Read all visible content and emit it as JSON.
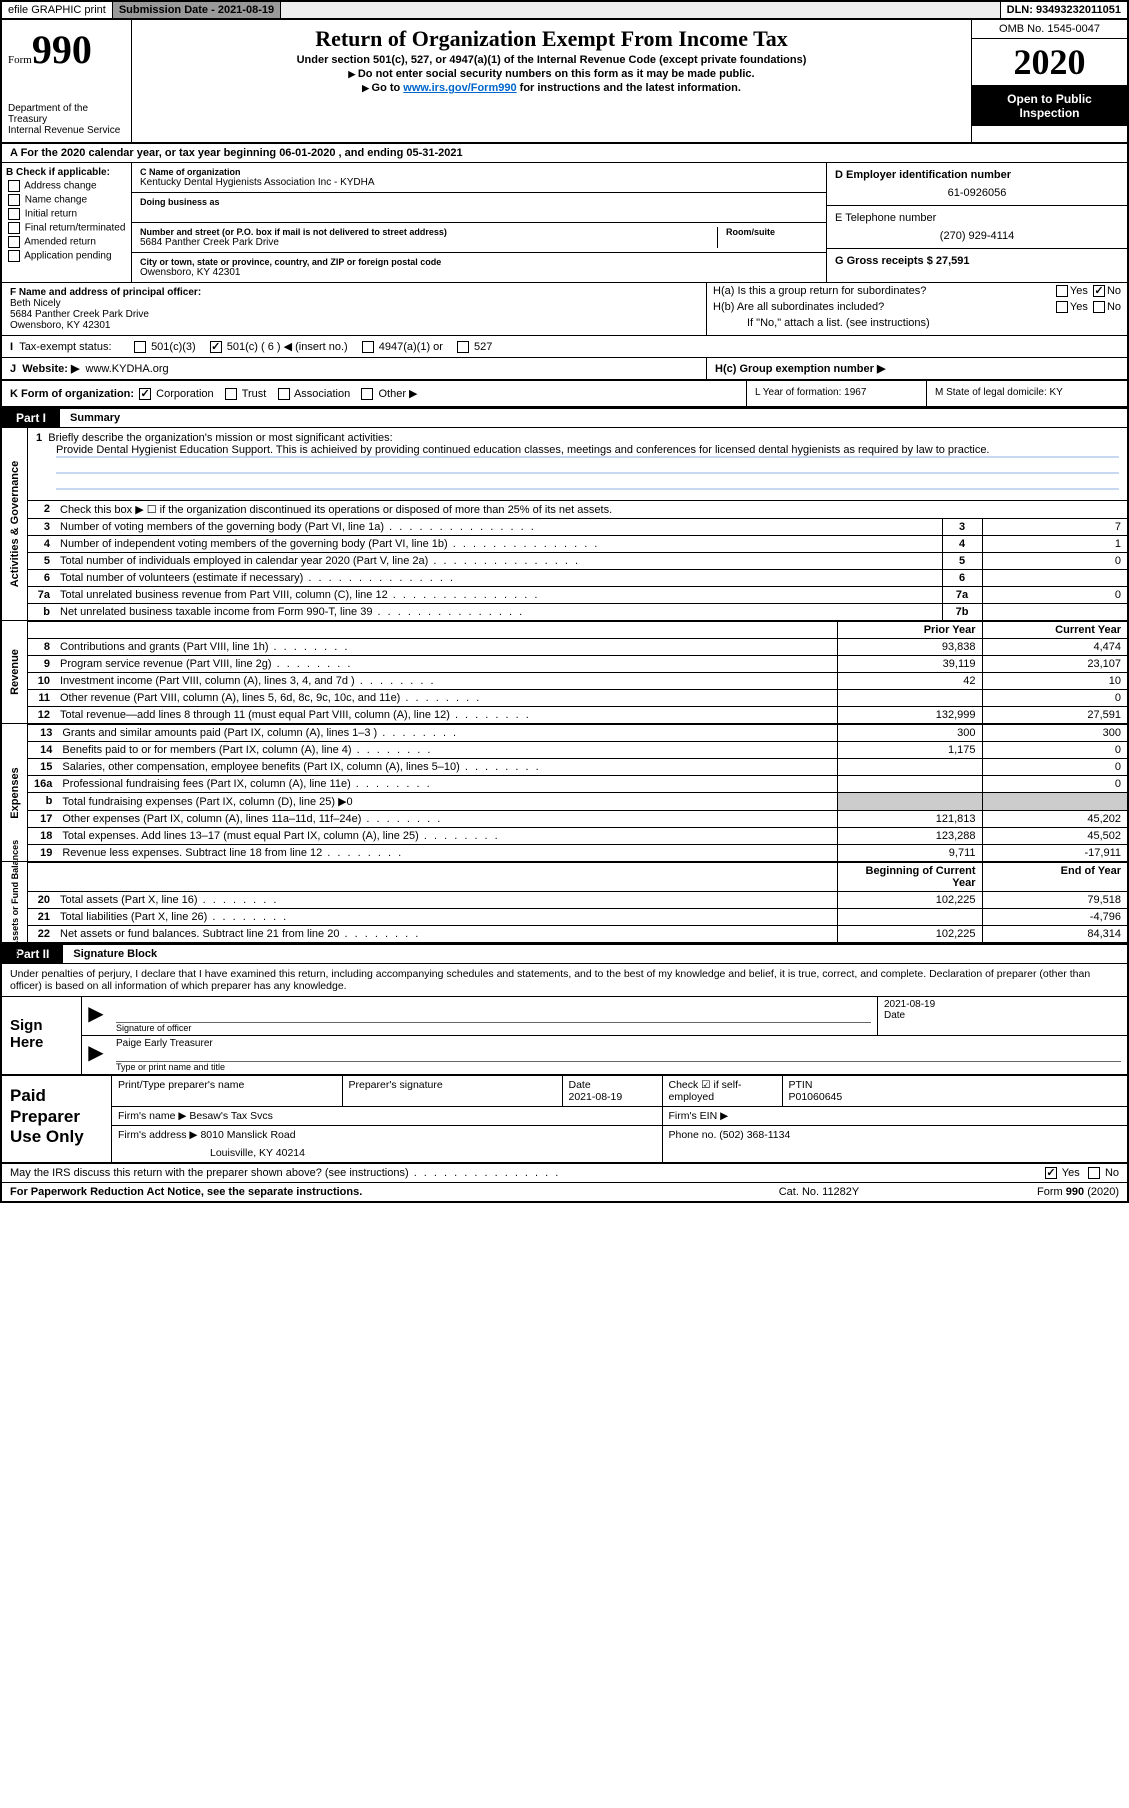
{
  "header": {
    "efile": "efile GRAPHIC print",
    "submission_label": "Submission Date - 2021-08-19",
    "dln": "DLN: 93493232011051"
  },
  "top": {
    "form_small": "Form",
    "form_big": "990",
    "dept": "Department of the Treasury\nInternal Revenue Service",
    "title": "Return of Organization Exempt From Income Tax",
    "sub1": "Under section 501(c), 527, or 4947(a)(1) of the Internal Revenue Code (except private foundations)",
    "sub2": "Do not enter social security numbers on this form as it may be made public.",
    "sub3_pre": "Go to ",
    "sub3_link": "www.irs.gov/Form990",
    "sub3_post": " for instructions and the latest information.",
    "omb": "OMB No. 1545-0047",
    "year": "2020",
    "public1": "Open to Public",
    "public2": "Inspection"
  },
  "rowA": "A  For the 2020 calendar year, or tax year beginning 06-01-2020     , and ending 05-31-2021",
  "colB": {
    "label": "B Check if applicable:",
    "items": [
      "Address change",
      "Name change",
      "Initial return",
      "Final return/terminated",
      "Amended return",
      "Application pending"
    ]
  },
  "colC": {
    "name_label": "C Name of organization",
    "name": "Kentucky Dental Hygienists Association Inc - KYDHA",
    "dba_label": "Doing business as",
    "addr_label": "Number and street (or P.O. box if mail is not delivered to street address)",
    "room_label": "Room/suite",
    "addr": "5684 Panther Creek Park Drive",
    "city_label": "City or town, state or province, country, and ZIP or foreign postal code",
    "city": "Owensboro, KY  42301"
  },
  "colDE": {
    "d_label": "D Employer identification number",
    "d_val": "61-0926056",
    "e_label": "E Telephone number",
    "e_val": "(270) 929-4114",
    "g_label": "G Gross receipts $ 27,591"
  },
  "colF": {
    "label": "F  Name and address of principal officer:",
    "name": "Beth Nicely",
    "addr1": "5684 Panther Creek Park Drive",
    "addr2": "Owensboro, KY  42301"
  },
  "colH": {
    "ha": "H(a)  Is this a group return for subordinates?",
    "hb": "H(b)  Are all subordinates included?",
    "hb_note": "If \"No,\" attach a list. (see instructions)",
    "hc": "H(c)  Group exemption number ▶"
  },
  "taxrow": {
    "label": "Tax-exempt status:",
    "o1": "501(c)(3)",
    "o2": "501(c) ( 6 ) ◀ (insert no.)",
    "o3": "4947(a)(1) or",
    "o4": "527"
  },
  "rowJ": {
    "label": "J",
    "text": "Website: ▶",
    "val": "www.KYDHA.org"
  },
  "rowK": {
    "k": "K Form of organization:",
    "k_opts": [
      "Corporation",
      "Trust",
      "Association",
      "Other ▶"
    ],
    "l": "L Year of formation: 1967",
    "m": "M State of legal domicile: KY"
  },
  "part1": {
    "num": "Part I",
    "title": "Summary"
  },
  "summary1": {
    "num": "1",
    "label": "Briefly describe the organization's mission or most significant activities:",
    "desc": "Provide Dental Hygienist Education Support. This is achieived by providing continued education classes, meetings and conferences for licensed dental hygienists as required by law to practice."
  },
  "lines_gov": [
    {
      "n": "2",
      "t": "Check this box ▶ ☐  if the organization discontinued its operations or disposed of more than 25% of its net assets.",
      "noval": true
    },
    {
      "n": "3",
      "t": "Number of voting members of the governing body (Part VI, line 1a)",
      "box": "3",
      "v": "7"
    },
    {
      "n": "4",
      "t": "Number of independent voting members of the governing body (Part VI, line 1b)",
      "box": "4",
      "v": "1"
    },
    {
      "n": "5",
      "t": "Total number of individuals employed in calendar year 2020 (Part V, line 2a)",
      "box": "5",
      "v": "0"
    },
    {
      "n": "6",
      "t": "Total number of volunteers (estimate if necessary)",
      "box": "6",
      "v": ""
    },
    {
      "n": "7a",
      "t": "Total unrelated business revenue from Part VIII, column (C), line 12",
      "box": "7a",
      "v": "0"
    },
    {
      "n": "b",
      "t": "Net unrelated business taxable income from Form 990-T, line 39",
      "box": "7b",
      "v": ""
    }
  ],
  "col_hdrs": {
    "py": "Prior Year",
    "cy": "Current Year"
  },
  "lines_rev": [
    {
      "n": "8",
      "t": "Contributions and grants (Part VIII, line 1h)",
      "py": "93,838",
      "cy": "4,474"
    },
    {
      "n": "9",
      "t": "Program service revenue (Part VIII, line 2g)",
      "py": "39,119",
      "cy": "23,107"
    },
    {
      "n": "10",
      "t": "Investment income (Part VIII, column (A), lines 3, 4, and 7d )",
      "py": "42",
      "cy": "10"
    },
    {
      "n": "11",
      "t": "Other revenue (Part VIII, column (A), lines 5, 6d, 8c, 9c, 10c, and 11e)",
      "py": "",
      "cy": "0"
    },
    {
      "n": "12",
      "t": "Total revenue—add lines 8 through 11 (must equal Part VIII, column (A), line 12)",
      "py": "132,999",
      "cy": "27,591"
    }
  ],
  "lines_exp": [
    {
      "n": "13",
      "t": "Grants and similar amounts paid (Part IX, column (A), lines 1–3 )",
      "py": "300",
      "cy": "300"
    },
    {
      "n": "14",
      "t": "Benefits paid to or for members (Part IX, column (A), line 4)",
      "py": "1,175",
      "cy": "0"
    },
    {
      "n": "15",
      "t": "Salaries, other compensation, employee benefits (Part IX, column (A), lines 5–10)",
      "py": "",
      "cy": "0"
    },
    {
      "n": "16a",
      "t": "Professional fundraising fees (Part IX, column (A), line 11e)",
      "py": "",
      "cy": "0"
    },
    {
      "n": "b",
      "t": "Total fundraising expenses (Part IX, column (D), line 25) ▶0",
      "shaded": true
    },
    {
      "n": "17",
      "t": "Other expenses (Part IX, column (A), lines 11a–11d, 11f–24e)",
      "py": "121,813",
      "cy": "45,202"
    },
    {
      "n": "18",
      "t": "Total expenses. Add lines 13–17 (must equal Part IX, column (A), line 25)",
      "py": "123,288",
      "cy": "45,502"
    },
    {
      "n": "19",
      "t": "Revenue less expenses. Subtract line 18 from line 12",
      "py": "9,711",
      "cy": "-17,911"
    }
  ],
  "col_hdrs_net": {
    "py": "Beginning of Current Year",
    "cy": "End of Year"
  },
  "lines_net": [
    {
      "n": "20",
      "t": "Total assets (Part X, line 16)",
      "py": "102,225",
      "cy": "79,518"
    },
    {
      "n": "21",
      "t": "Total liabilities (Part X, line 26)",
      "py": "",
      "cy": "-4,796"
    },
    {
      "n": "22",
      "t": "Net assets or fund balances. Subtract line 21 from line 20",
      "py": "102,225",
      "cy": "84,314"
    }
  ],
  "part2": {
    "num": "Part II",
    "title": "Signature Block"
  },
  "sig_intro": "Under penalties of perjury, I declare that I have examined this return, including accompanying schedules and statements, and to the best of my knowledge and belief, it is true, correct, and complete. Declaration of preparer (other than officer) is based on all information of which preparer has any knowledge.",
  "sign": {
    "left": "Sign Here",
    "r1_l": "Signature of officer",
    "r1_d": "2021-08-19",
    "r1_dl": "Date",
    "r2_v": "Paige Early Treasurer",
    "r2_l": "Type or print name and title"
  },
  "prep": {
    "left": "Paid Preparer Use Only",
    "r1": {
      "c1": "Print/Type preparer's name",
      "c2": "Preparer's signature",
      "c3l": "Date",
      "c3v": "2021-08-19",
      "c4": "Check ☑ if self-employed",
      "c5l": "PTIN",
      "c5v": "P01060645"
    },
    "r2": {
      "c1l": "Firm's name    ▶",
      "c1v": "Besaw's Tax Svcs",
      "c2": "Firm's EIN ▶"
    },
    "r3": {
      "c1l": "Firm's address ▶",
      "c1v": "8010 Manslick Road",
      "c1v2": "Louisville, KY  40214",
      "c2": "Phone no. (502) 368-1134"
    }
  },
  "footer": {
    "discuss": "May the IRS discuss this return with the preparer shown above? (see instructions)",
    "yes": "Yes",
    "no": "No",
    "pra": "For Paperwork Reduction Act Notice, see the separate instructions.",
    "cat": "Cat. No. 11282Y",
    "form": "Form 990 (2020)"
  },
  "vlabels": {
    "gov": "Activities & Governance",
    "rev": "Revenue",
    "exp": "Expenses",
    "net": "Net Assets or Fund Balances"
  },
  "colors": {
    "border": "#000000",
    "link": "#0066cc",
    "blueline": "#c8d8f0",
    "shade": "#cccccc"
  }
}
